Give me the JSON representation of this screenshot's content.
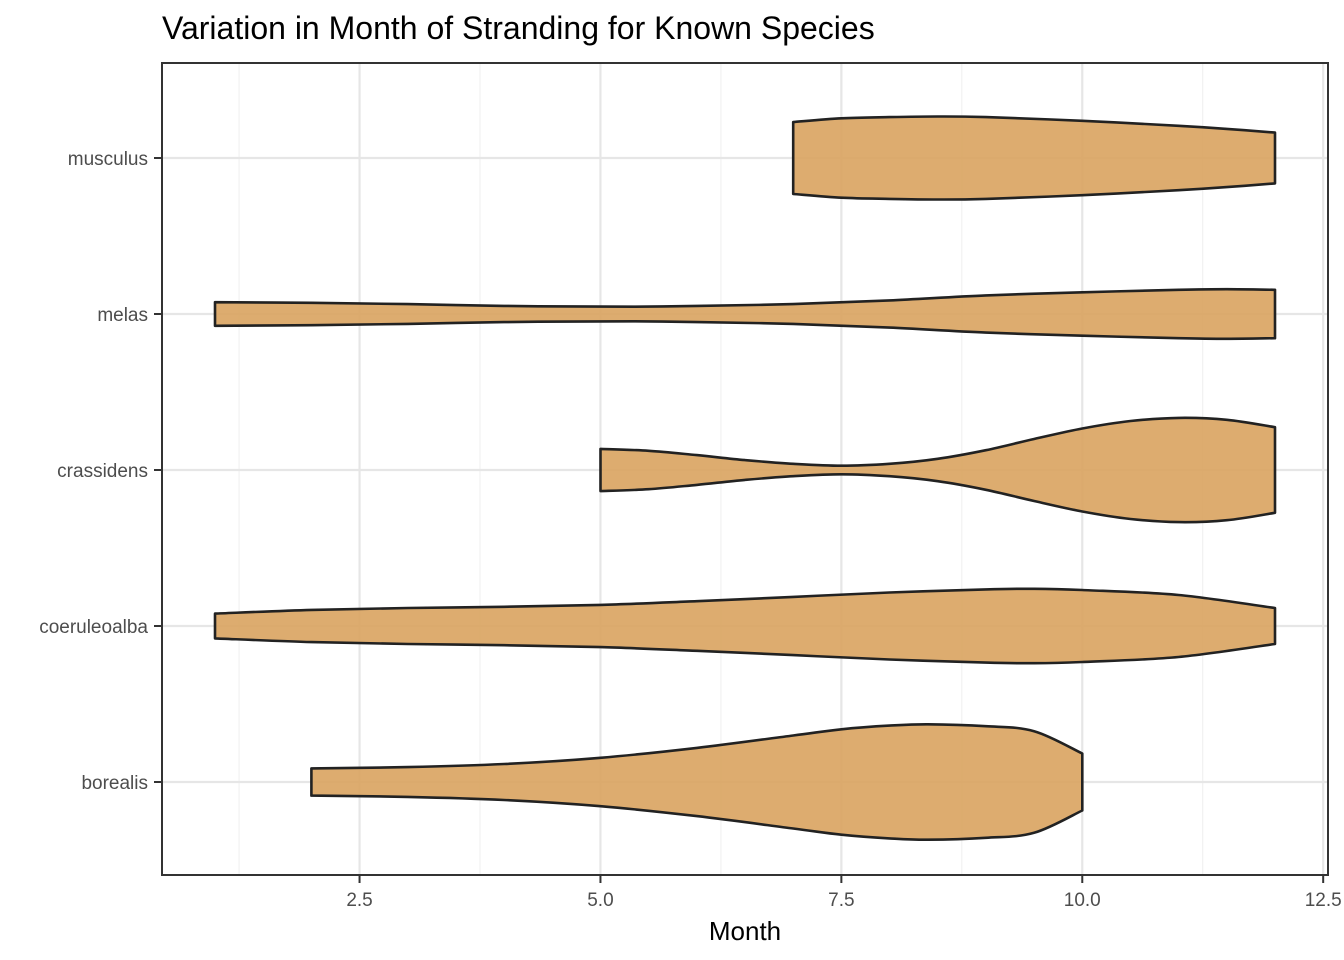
{
  "chart_data": {
    "type": "violin",
    "title": "Variation in Month of Stranding for Known Species",
    "xlabel": "Month",
    "ylabel": "",
    "xlim": [
      0.45,
      12.55
    ],
    "x_ticks": [
      2.5,
      5.0,
      7.5,
      10.0,
      12.5
    ],
    "x_tick_labels": [
      "2.5",
      "5.0",
      "7.5",
      "10.0",
      "12.5"
    ],
    "categories": [
      "borealis",
      "coeruleoalba",
      "crassidens",
      "melas",
      "musculus"
    ],
    "fill_color": "#d9a35f",
    "outline_color": "#222222",
    "grid": true,
    "legend": "none",
    "series": [
      {
        "category": "borealis",
        "min": 2,
        "max": 10,
        "profile": [
          [
            2,
            0.22
          ],
          [
            3,
            0.24
          ],
          [
            4,
            0.29
          ],
          [
            5,
            0.39
          ],
          [
            6,
            0.55
          ],
          [
            7,
            0.75
          ],
          [
            7.5,
            0.85
          ],
          [
            8,
            0.91
          ],
          [
            8.4,
            0.93
          ],
          [
            9,
            0.9
          ],
          [
            9.5,
            0.82
          ],
          [
            10,
            0.46
          ]
        ]
      },
      {
        "category": "coeruleoalba",
        "min": 1,
        "max": 12,
        "profile": [
          [
            1,
            0.2
          ],
          [
            2,
            0.26
          ],
          [
            3,
            0.29
          ],
          [
            4,
            0.31
          ],
          [
            5,
            0.34
          ],
          [
            6,
            0.4
          ],
          [
            7,
            0.47
          ],
          [
            8,
            0.54
          ],
          [
            9,
            0.59
          ],
          [
            9.5,
            0.6
          ],
          [
            10,
            0.58
          ],
          [
            11,
            0.5
          ],
          [
            12,
            0.29
          ]
        ]
      },
      {
        "category": "crassidens",
        "min": 5,
        "max": 12,
        "profile": [
          [
            5,
            0.34
          ],
          [
            5.5,
            0.31
          ],
          [
            6,
            0.24
          ],
          [
            6.5,
            0.16
          ],
          [
            7,
            0.1
          ],
          [
            7.5,
            0.07
          ],
          [
            8,
            0.1
          ],
          [
            8.5,
            0.18
          ],
          [
            9,
            0.32
          ],
          [
            9.5,
            0.5
          ],
          [
            10,
            0.67
          ],
          [
            10.5,
            0.79
          ],
          [
            11,
            0.84
          ],
          [
            11.5,
            0.81
          ],
          [
            12,
            0.69
          ]
        ]
      },
      {
        "category": "melas",
        "min": 1,
        "max": 12,
        "profile": [
          [
            1,
            0.19
          ],
          [
            2,
            0.18
          ],
          [
            3,
            0.16
          ],
          [
            4,
            0.13
          ],
          [
            5,
            0.12
          ],
          [
            5.5,
            0.12
          ],
          [
            6,
            0.13
          ],
          [
            7,
            0.16
          ],
          [
            8,
            0.22
          ],
          [
            9,
            0.3
          ],
          [
            10,
            0.35
          ],
          [
            11,
            0.39
          ],
          [
            11.5,
            0.4
          ],
          [
            12,
            0.39
          ]
        ]
      },
      {
        "category": "musculus",
        "min": 7,
        "max": 12,
        "profile": [
          [
            7,
            0.58
          ],
          [
            7.5,
            0.64
          ],
          [
            8,
            0.66
          ],
          [
            8.5,
            0.67
          ],
          [
            9,
            0.66
          ],
          [
            10,
            0.6
          ],
          [
            11,
            0.52
          ],
          [
            11.5,
            0.47
          ],
          [
            12,
            0.41
          ]
        ]
      }
    ]
  }
}
